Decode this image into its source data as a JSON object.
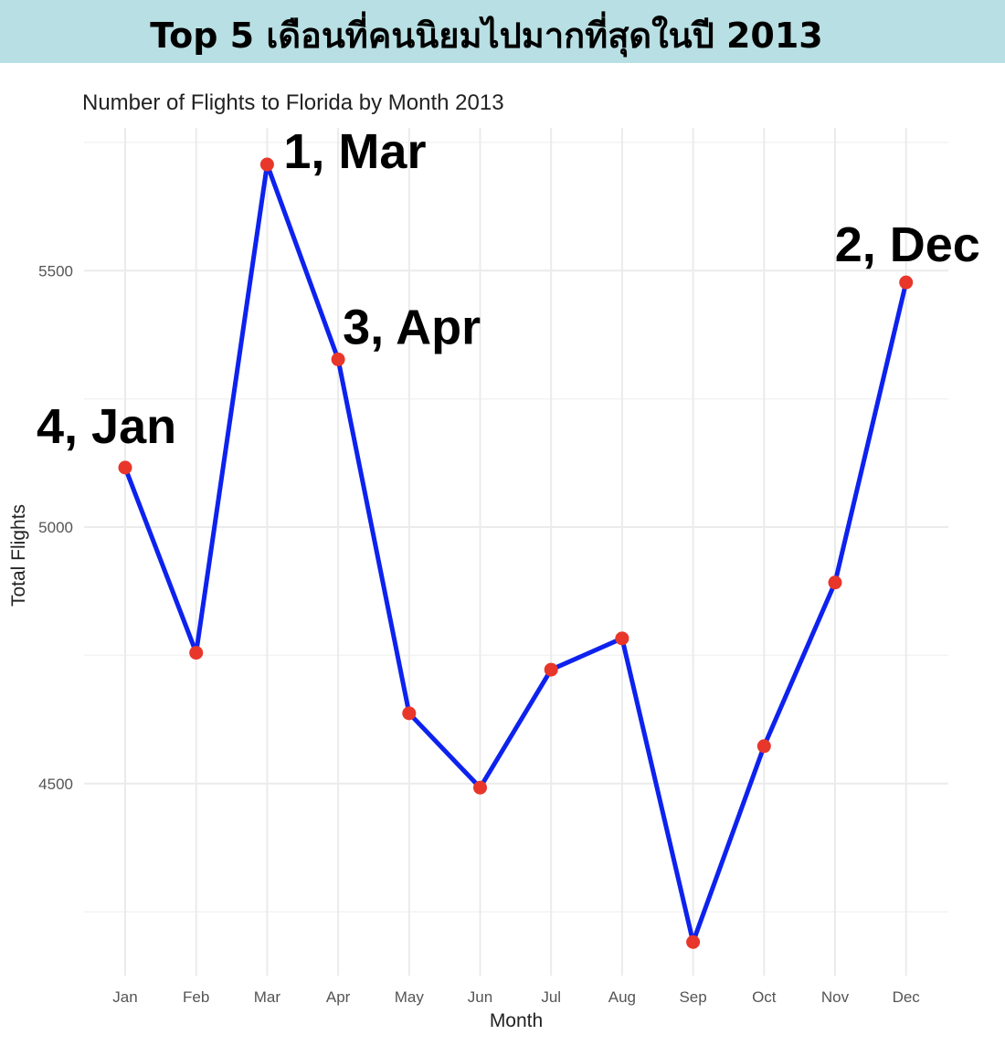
{
  "header": {
    "title": "Top 5 เดือนที่คนนิยมไปมากที่สุดในปี 2013"
  },
  "chart_data": {
    "type": "line",
    "title": "Number of Flights to Florida by Month 2013",
    "xlabel": "Month",
    "ylabel": "Total Flights",
    "categories": [
      "Jan",
      "Feb",
      "Mar",
      "Apr",
      "May",
      "Jun",
      "Jul",
      "Aug",
      "Sep",
      "Oct",
      "Nov",
      "Dec"
    ],
    "values": [
      5116,
      4755,
      5707,
      5327,
      4637,
      4492,
      4722,
      4783,
      4191,
      4573,
      4892,
      5477
    ],
    "yticks": [
      4500,
      5000,
      5500
    ],
    "ylim": [
      4150,
      5800
    ],
    "grid": true,
    "line_color": "#0d22ee",
    "point_color": "#e8362a",
    "annotations": [
      {
        "text": "1, Mar",
        "category": "Mar"
      },
      {
        "text": "2, Dec",
        "category": "Dec"
      },
      {
        "text": "3, Apr",
        "category": "Apr"
      },
      {
        "text": "4, Jan",
        "category": "Jan"
      }
    ]
  }
}
